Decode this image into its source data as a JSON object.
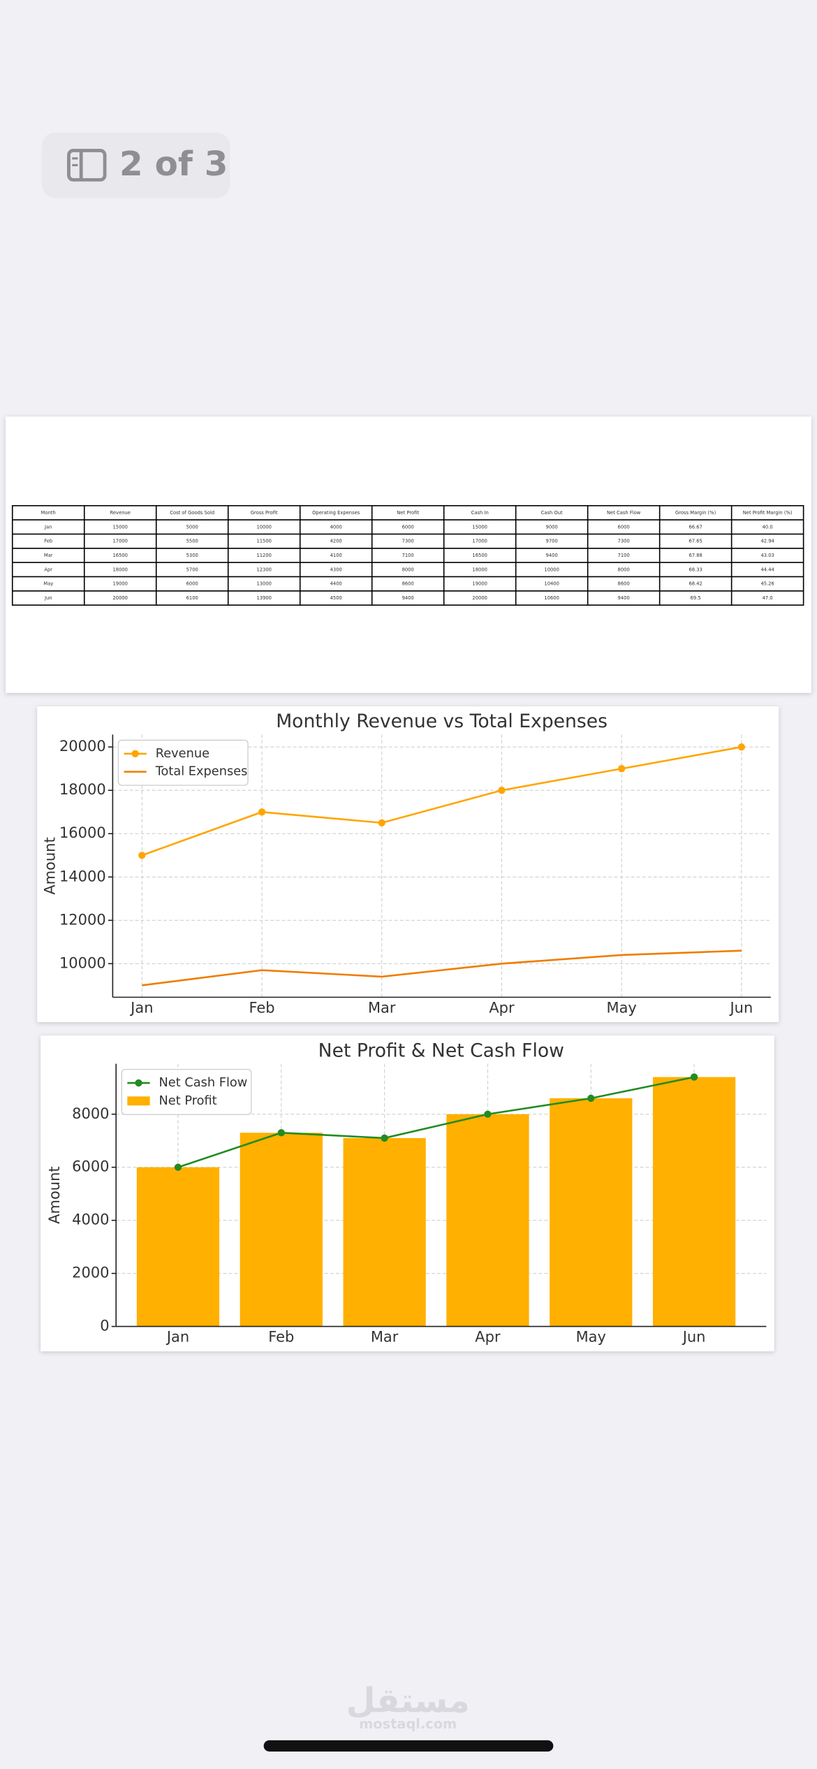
{
  "badge": "2 of 3",
  "table": {
    "columns": [
      "Month",
      "Revenue",
      "Cost of Goods Sold",
      "Gross Profit",
      "Operating Expenses",
      "Net Profit",
      "Cash In",
      "Cash Out",
      "Net Cash Flow",
      "Gross Margin (%)",
      "Net Profit Margin (%)"
    ],
    "rows": [
      [
        "Jan",
        "15000",
        "5000",
        "10000",
        "4000",
        "6000",
        "15000",
        "9000",
        "6000",
        "66.67",
        "40.0"
      ],
      [
        "Feb",
        "17000",
        "5500",
        "11500",
        "4200",
        "7300",
        "17000",
        "9700",
        "7300",
        "67.65",
        "42.94"
      ],
      [
        "Mar",
        "16500",
        "5300",
        "11200",
        "4100",
        "7100",
        "16500",
        "9400",
        "7100",
        "67.88",
        "43.03"
      ],
      [
        "Apr",
        "18000",
        "5700",
        "12300",
        "4300",
        "8000",
        "18000",
        "10000",
        "8000",
        "68.33",
        "44.44"
      ],
      [
        "May",
        "19000",
        "6000",
        "13000",
        "4400",
        "8600",
        "19000",
        "10400",
        "8600",
        "68.42",
        "45.26"
      ],
      [
        "Jun",
        "20000",
        "6100",
        "13900",
        "4500",
        "9400",
        "20000",
        "10600",
        "9400",
        "69.5",
        "47.0"
      ]
    ]
  },
  "chart_data": [
    {
      "type": "line",
      "title": "Monthly Revenue vs Total Expenses",
      "y_label": "Amount",
      "categories": [
        "Jan",
        "Feb",
        "Mar",
        "Apr",
        "May",
        "Jun"
      ],
      "series": [
        {
          "name": "Revenue",
          "color": "#ffa500",
          "marker": true,
          "values": [
            15000,
            17000,
            16500,
            18000,
            19000,
            20000
          ]
        },
        {
          "name": "Total Expenses",
          "color": "#f07c00",
          "marker": false,
          "values": [
            9000,
            9700,
            9400,
            10000,
            10400,
            10600
          ]
        }
      ],
      "ylim": [
        8450,
        20575
      ],
      "yticks": [
        10000,
        12000,
        14000,
        16000,
        18000,
        20000
      ],
      "grid": true,
      "legend": "upper-left"
    },
    {
      "type": "bar",
      "title": "Net Profit & Net Cash Flow",
      "y_label": "Amount",
      "categories": [
        "Jan",
        "Feb",
        "Mar",
        "Apr",
        "May",
        "Jun"
      ],
      "series": [
        {
          "name": "Net Cash Flow",
          "type": "line",
          "color": "#228b22",
          "marker": true,
          "values": [
            6000,
            7300,
            7100,
            8000,
            8600,
            9400
          ]
        },
        {
          "name": "Net Profit",
          "type": "bar",
          "color": "#ffb000",
          "values": [
            6000,
            7300,
            7100,
            8000,
            8600,
            9400
          ]
        }
      ],
      "ylim": [
        0,
        9900
      ],
      "yticks": [
        0,
        2000,
        4000,
        6000,
        8000
      ],
      "grid": true,
      "legend": "upper-left"
    }
  ],
  "watermark": {
    "arabic": "مستقل",
    "latin": "mostaql.com"
  }
}
